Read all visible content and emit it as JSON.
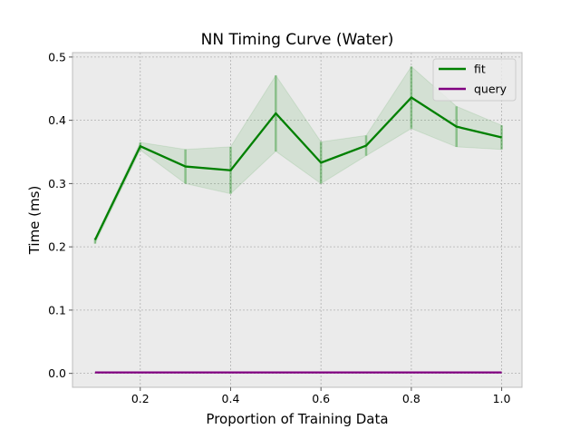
{
  "chart_data": {
    "type": "line",
    "title": "NN Timing Curve (Water)",
    "xlabel": "Proportion of Training Data",
    "ylabel": "Time (ms)",
    "xlim": [
      0.05,
      1.045
    ],
    "ylim": [
      -0.022,
      0.507
    ],
    "xticks": [
      0.2,
      0.4,
      0.6,
      0.8,
      1.0
    ],
    "xtick_labels": [
      "0.2",
      "0.4",
      "0.6",
      "0.8",
      "1.0"
    ],
    "yticks": [
      0.0,
      0.1,
      0.2,
      0.3,
      0.4,
      0.5
    ],
    "ytick_labels": [
      "0.0",
      "0.1",
      "0.2",
      "0.3",
      "0.4",
      "0.5"
    ],
    "grid": true,
    "legend_position": "top-right",
    "x": [
      0.1,
      0.2,
      0.3,
      0.4,
      0.5,
      0.6,
      0.7,
      0.8,
      0.9,
      1.0
    ],
    "series": [
      {
        "name": "fit",
        "color": "#008000",
        "values": [
          0.211,
          0.359,
          0.327,
          0.321,
          0.411,
          0.333,
          0.36,
          0.436,
          0.39,
          0.373
        ],
        "upper": [
          0.214,
          0.365,
          0.354,
          0.358,
          0.471,
          0.366,
          0.376,
          0.485,
          0.422,
          0.392
        ],
        "lower": [
          0.205,
          0.353,
          0.3,
          0.284,
          0.351,
          0.3,
          0.344,
          0.387,
          0.358,
          0.354
        ]
      },
      {
        "name": "query",
        "color": "#800080",
        "values": [
          0.0015,
          0.0015,
          0.0015,
          0.0015,
          0.0015,
          0.0015,
          0.0015,
          0.0015,
          0.0015,
          0.0015
        ],
        "upper": [
          0.0017,
          0.0017,
          0.0017,
          0.0017,
          0.0017,
          0.0017,
          0.0017,
          0.0017,
          0.0017,
          0.0017
        ],
        "lower": [
          0.0013,
          0.0013,
          0.0013,
          0.0013,
          0.0013,
          0.0013,
          0.0013,
          0.0013,
          0.0013,
          0.0013
        ]
      }
    ],
    "colors": {
      "plot_background": "#ebebeb",
      "grid": "#b0b0b0",
      "axes_edge": "#bcbcbc"
    }
  }
}
